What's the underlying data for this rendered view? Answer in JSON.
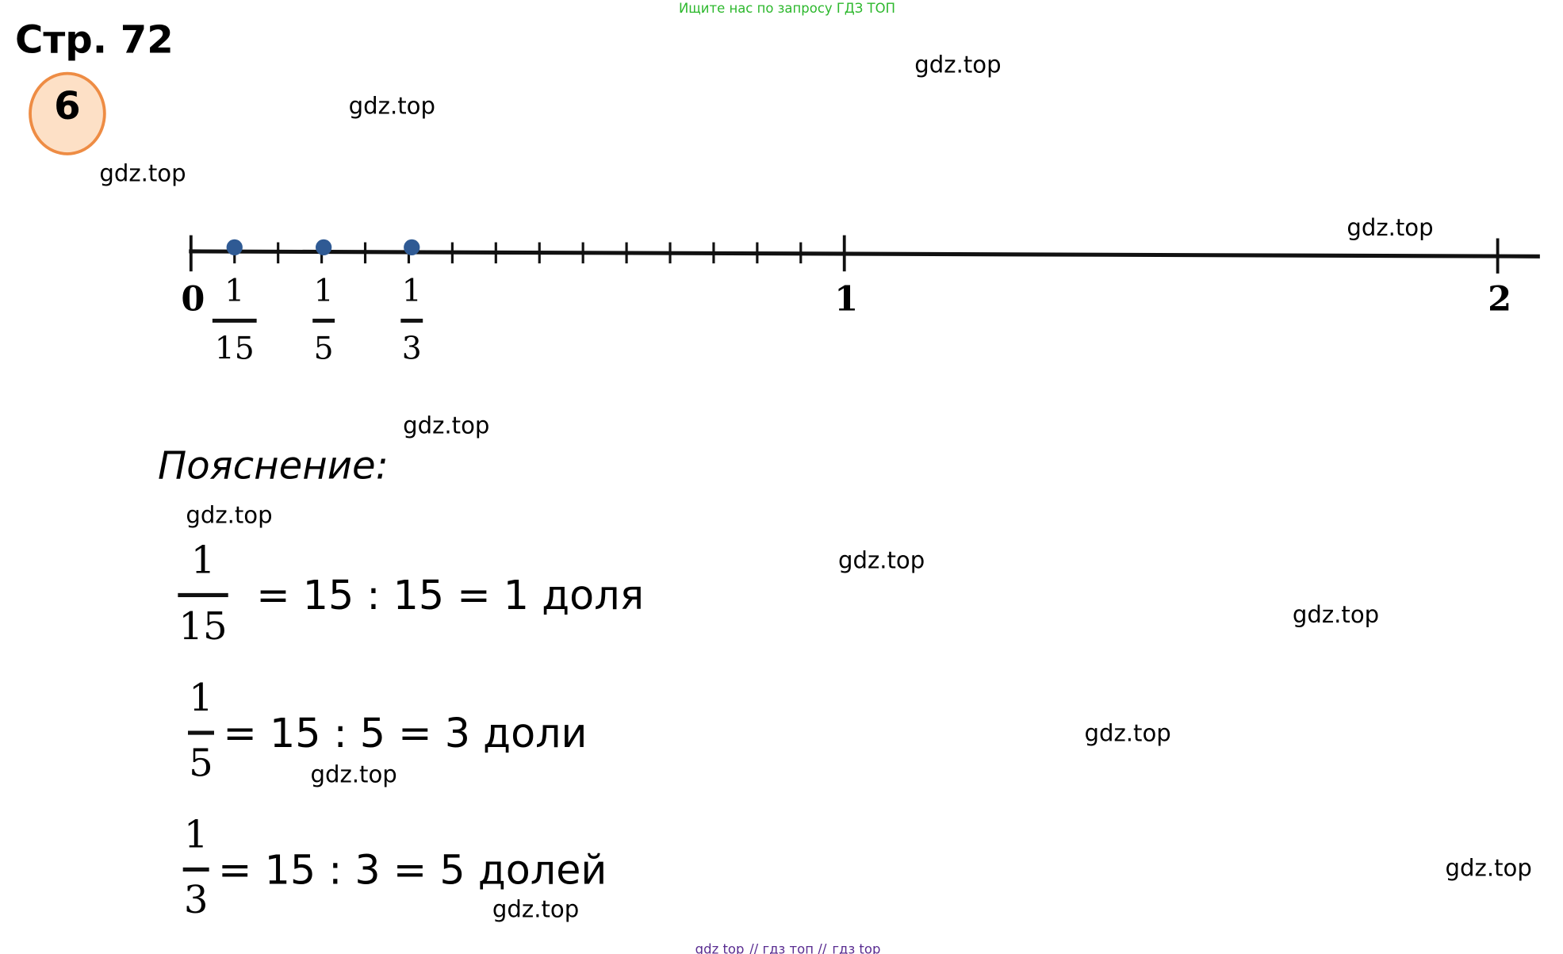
{
  "top_banner": "Ищите нас по запросу ГДЗ ТОП",
  "page": "Стр. 72",
  "task_number": "6",
  "watermarks": [
    "gdz.top",
    "gdz.top",
    "gdz.top",
    "gdz.top",
    "gdz.top",
    "gdz.top",
    "gdz.top",
    "gdz.top",
    "gdz.top",
    "gdz.top",
    "gdz.top",
    "gdz.top"
  ],
  "number_line": {
    "labels": [
      "0",
      "1",
      "2"
    ],
    "fractions": [
      {
        "numerator": "1",
        "denominator": "15"
      },
      {
        "numerator": "1",
        "denominator": "5"
      },
      {
        "numerator": "1",
        "denominator": "3"
      }
    ]
  },
  "explanation_title": "Пояснение:",
  "equations": [
    {
      "numerator": "1",
      "denominator": "15",
      "text": "= 15 : 15 = 1 доля"
    },
    {
      "numerator": "1",
      "denominator": "5",
      "text": "= 15 : 5 = 3 доли"
    },
    {
      "numerator": "1",
      "denominator": "3",
      "text": "= 15 : 3 = 5 долей"
    }
  ],
  "footer": {
    "items": [
      "gdz top",
      "гдз топ",
      "гдз top"
    ],
    "separator": "//"
  }
}
